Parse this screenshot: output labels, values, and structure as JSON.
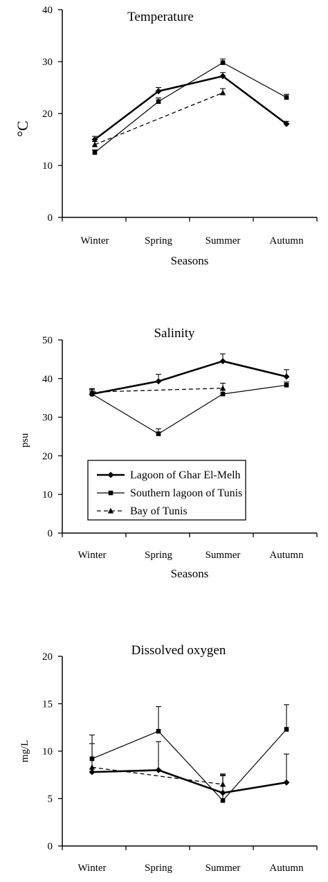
{
  "colors": {
    "ink": "#000000",
    "background": "#ffffff"
  },
  "legend": {
    "entries": [
      "Lagoon of Ghar El-Melh",
      "Southern lagoon of Tunis",
      "Bay of Tunis"
    ]
  },
  "chart_data": [
    {
      "type": "line",
      "title": "Temperature",
      "xlabel": "Seasons",
      "ylabel": "°C",
      "categories": [
        "Winter",
        "Spring",
        "Summer",
        "Autumn"
      ],
      "ylim": [
        0,
        40
      ],
      "yticks": [
        0,
        10,
        20,
        30,
        40
      ],
      "grid": false,
      "series": [
        {
          "name": "Lagoon of Ghar El-Melh",
          "values": [
            15.0,
            24.3,
            27.2,
            18.0
          ],
          "errors": [
            0.6,
            0.7,
            0.7,
            0.5
          ]
        },
        {
          "name": "Southern lagoon of Tunis",
          "values": [
            12.5,
            22.3,
            29.8,
            23.1
          ],
          "errors": [
            0.5,
            0.7,
            0.7,
            0.6
          ]
        },
        {
          "name": "Bay of Tunis",
          "values": [
            14.0,
            null,
            24.0,
            null
          ],
          "errors": [
            0.6,
            null,
            0.8,
            null
          ]
        }
      ]
    },
    {
      "type": "line",
      "title": "Salinity",
      "xlabel": "Seasons",
      "ylabel": "psu",
      "categories": [
        "Winter",
        "Spring",
        "Summer",
        "Autumn"
      ],
      "ylim": [
        0,
        50
      ],
      "yticks": [
        0,
        10,
        20,
        30,
        40,
        50
      ],
      "grid": false,
      "legend_position": "lower-center",
      "series": [
        {
          "name": "Lagoon of Ghar El-Melh",
          "values": [
            36.0,
            39.3,
            44.5,
            40.5
          ],
          "errors": [
            1.2,
            1.8,
            1.9,
            1.8
          ]
        },
        {
          "name": "Southern lagoon of Tunis",
          "values": [
            36.0,
            25.7,
            36.0,
            38.3
          ],
          "errors": [
            0.8,
            1.3,
            1.0,
            0.8
          ]
        },
        {
          "name": "Bay of Tunis",
          "values": [
            36.5,
            null,
            37.5,
            null
          ],
          "errors": [
            0.9,
            null,
            1.3,
            null
          ]
        }
      ]
    },
    {
      "type": "line",
      "title": "Dissolved oxygen",
      "xlabel": "",
      "ylabel": "mg/L",
      "categories": [
        "Winter",
        "Spring",
        "Summer",
        "Autumn"
      ],
      "ylim": [
        0,
        20
      ],
      "yticks": [
        0,
        5,
        10,
        15,
        20
      ],
      "grid": false,
      "series": [
        {
          "name": "Lagoon of Ghar El-Melh",
          "values": [
            7.8,
            8.0,
            5.6,
            6.7
          ],
          "errors": [
            0.0,
            3.0,
            2.0,
            3.0
          ]
        },
        {
          "name": "Southern lagoon of Tunis",
          "values": [
            9.2,
            12.1,
            4.8,
            12.3
          ],
          "errors": [
            2.5,
            2.6,
            2.6,
            2.6
          ]
        },
        {
          "name": "Bay of Tunis",
          "values": [
            8.3,
            null,
            6.5,
            null
          ],
          "errors": [
            2.5,
            null,
            1.0,
            null
          ]
        }
      ]
    }
  ]
}
